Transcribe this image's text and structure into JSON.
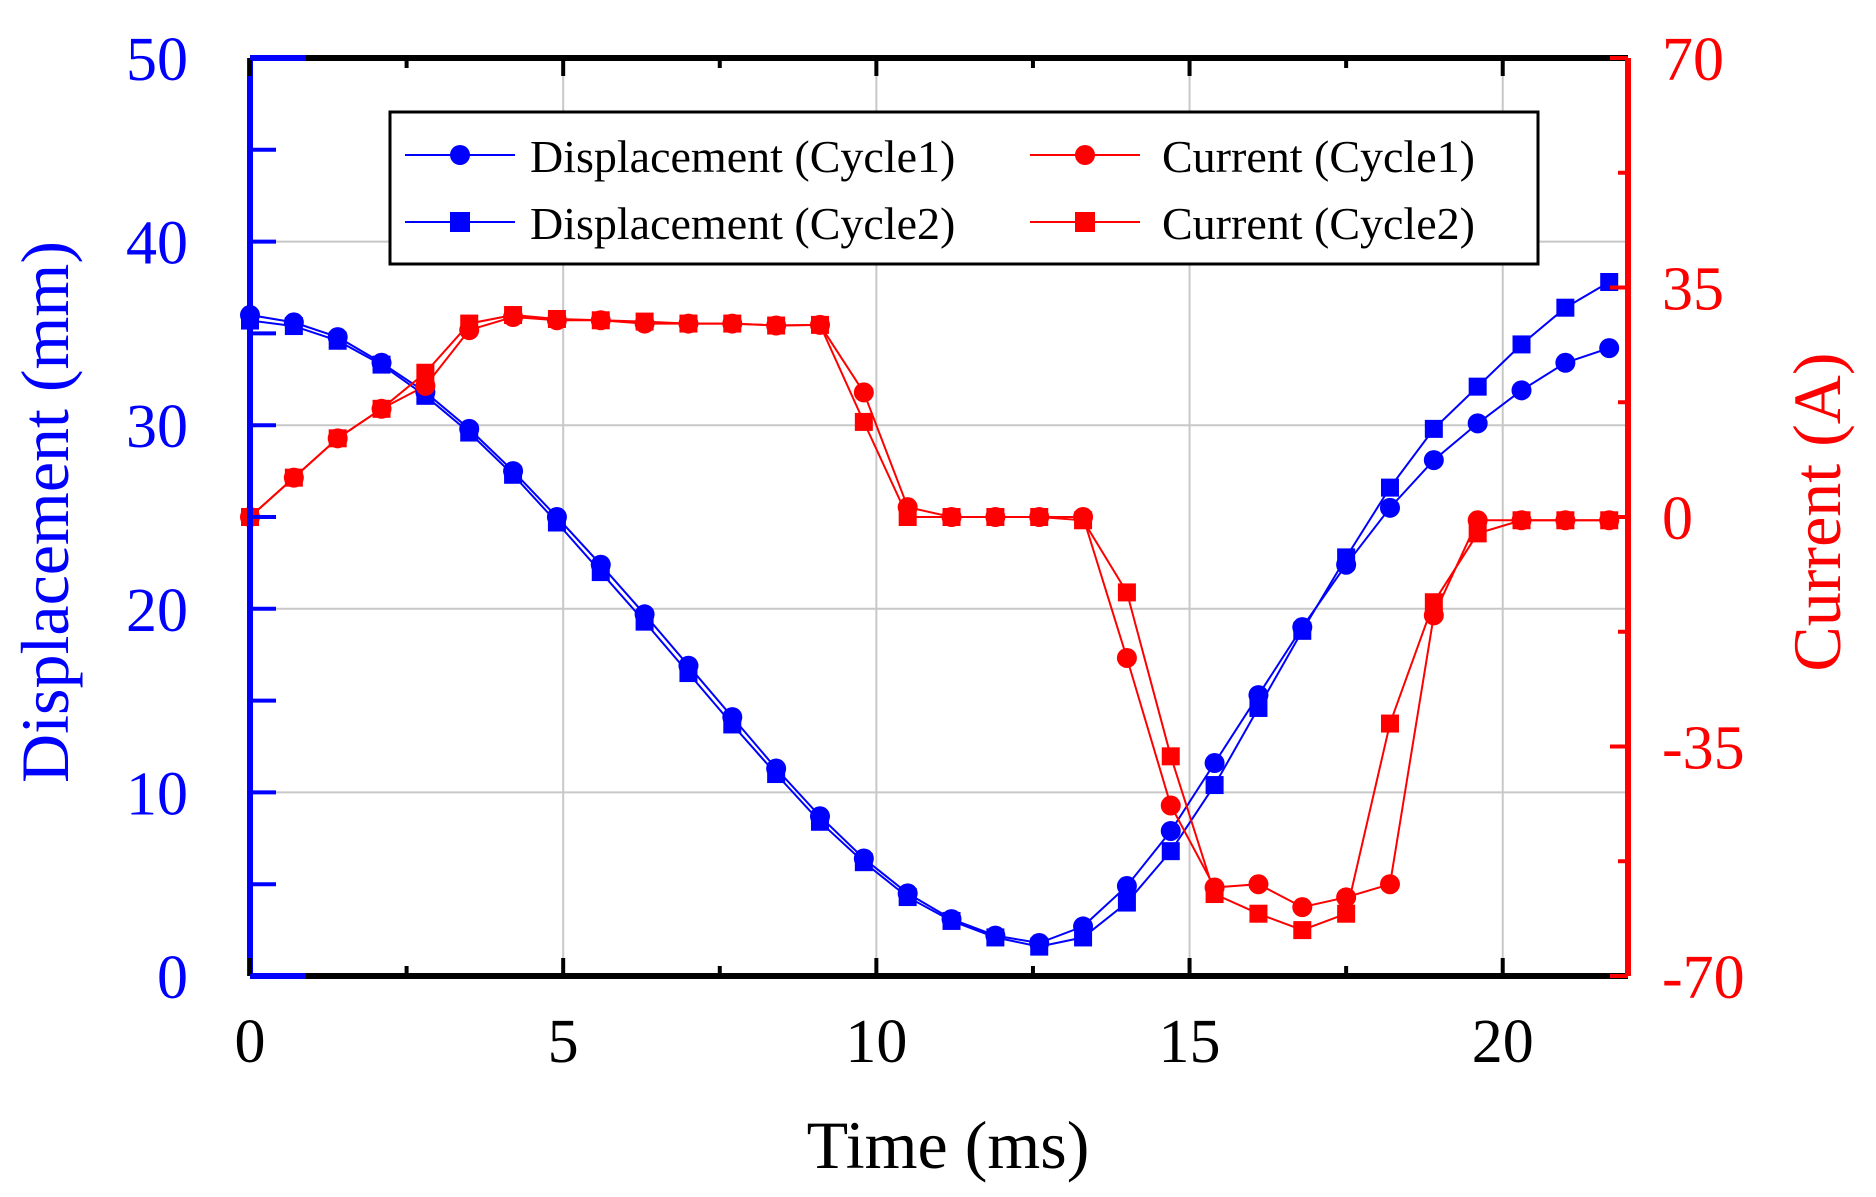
{
  "chart_data": {
    "type": "line",
    "xlabel": "Time (ms)",
    "ylabel_left": "Displacement (mm)",
    "ylabel_right": "Current (A)",
    "xlim": [
      0,
      22
    ],
    "ylim_left": [
      0,
      50
    ],
    "ylim_right": [
      -70,
      70
    ],
    "x_ticks": [
      0,
      5,
      10,
      15,
      20
    ],
    "x_tick_labels": [
      "0",
      "5",
      "10",
      "15",
      "20"
    ],
    "y_left_ticks": [
      0,
      10,
      20,
      30,
      40,
      50
    ],
    "y_left_tick_labels": [
      "0",
      "10",
      "20",
      "30",
      "40",
      "50"
    ],
    "y_right_ticks": [
      -70,
      -35,
      0,
      35,
      70
    ],
    "y_right_tick_labels": [
      "-70",
      "-35",
      "0",
      "35",
      "70"
    ],
    "grid": true,
    "legend_position": "top-center",
    "colors": {
      "left_axis": "#0000ff",
      "right_axis": "#ff0000",
      "frame": "#000000",
      "grid": "#c8c8c8"
    },
    "series": [
      {
        "name": "Displacement (Cycle1)",
        "axis": "left",
        "marker": "circle",
        "color": "#0000ff",
        "x": [
          0,
          0.7,
          1.4,
          2.1,
          2.8,
          3.5,
          4.2,
          4.9,
          5.6,
          6.3,
          7.0,
          7.7,
          8.4,
          9.1,
          9.8,
          10.5,
          11.2,
          11.9,
          12.6,
          13.3,
          14.0,
          14.7,
          15.4,
          16.1,
          16.8,
          17.5,
          18.2,
          18.9,
          19.6,
          20.3,
          21.0,
          21.7
        ],
        "y": [
          36.0,
          35.6,
          34.8,
          33.4,
          31.8,
          29.8,
          27.5,
          25.0,
          22.4,
          19.7,
          16.9,
          14.1,
          11.3,
          8.7,
          6.4,
          4.5,
          3.1,
          2.2,
          1.8,
          2.7,
          4.9,
          7.9,
          11.6,
          15.3,
          19.0,
          22.4,
          25.5,
          28.1,
          30.1,
          31.9,
          33.4,
          34.2
        ]
      },
      {
        "name": "Displacement (Cycle2)",
        "axis": "left",
        "marker": "square",
        "color": "#0000ff",
        "x": [
          0,
          0.7,
          1.4,
          2.1,
          2.8,
          3.5,
          4.2,
          4.9,
          5.6,
          6.3,
          7.0,
          7.7,
          8.4,
          9.1,
          9.8,
          10.5,
          11.2,
          11.9,
          12.6,
          13.3,
          14.0,
          14.7,
          15.4,
          16.1,
          16.8,
          17.5,
          18.2,
          18.9,
          19.6,
          20.3,
          21.0,
          21.7
        ],
        "y": [
          35.7,
          35.4,
          34.6,
          33.3,
          31.6,
          29.6,
          27.3,
          24.7,
          22.0,
          19.3,
          16.5,
          13.7,
          11.0,
          8.4,
          6.2,
          4.3,
          3.0,
          2.1,
          1.6,
          2.1,
          4.0,
          6.8,
          10.4,
          14.6,
          18.8,
          22.8,
          26.6,
          29.8,
          32.1,
          34.4,
          36.4,
          37.8
        ]
      },
      {
        "name": "Current (Cycle1)",
        "axis": "right",
        "marker": "circle",
        "color": "#ff0000",
        "x": [
          0,
          0.7,
          1.4,
          2.1,
          2.8,
          3.5,
          4.2,
          4.9,
          5.6,
          6.3,
          7.0,
          7.7,
          8.4,
          9.1,
          9.8,
          10.5,
          11.2,
          11.9,
          12.6,
          13.3,
          14.0,
          14.7,
          15.4,
          16.1,
          16.8,
          17.5,
          18.2,
          18.9,
          19.6,
          20.3,
          21.0,
          21.7
        ],
        "y": [
          0,
          6,
          12,
          16.5,
          20,
          28.5,
          30.5,
          30,
          30,
          29.5,
          29.5,
          29.5,
          29.2,
          29.3,
          19,
          1.5,
          0,
          0,
          0,
          0,
          -21.5,
          -44,
          -56.5,
          -56,
          -59.5,
          -58,
          -56,
          -15,
          -0.5,
          -0.5,
          -0.5,
          -0.5
        ]
      },
      {
        "name": "Current (Cycle2)",
        "axis": "right",
        "marker": "square",
        "color": "#ff0000",
        "x": [
          0,
          0.7,
          1.4,
          2.1,
          2.8,
          3.5,
          4.2,
          4.9,
          5.6,
          6.3,
          7.0,
          7.7,
          8.4,
          9.1,
          9.8,
          10.5,
          11.2,
          11.9,
          12.6,
          13.3,
          14.0,
          14.7,
          15.4,
          16.1,
          16.8,
          17.5,
          18.2,
          18.9,
          19.6,
          20.3,
          21.0,
          21.7
        ],
        "y": [
          0,
          6,
          12,
          16.5,
          22,
          29.5,
          30.8,
          30.2,
          30,
          29.8,
          29.5,
          29.5,
          29.2,
          29.3,
          14.5,
          0,
          0,
          0,
          0,
          -0.5,
          -11.5,
          -36.5,
          -57.5,
          -60.5,
          -63,
          -60.5,
          -31.5,
          -13,
          -2.5,
          -0.5,
          -0.5,
          -0.5
        ]
      }
    ]
  }
}
